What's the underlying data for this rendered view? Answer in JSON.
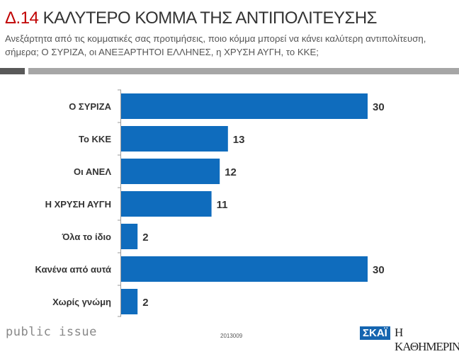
{
  "header": {
    "code": "Δ.14",
    "title": "ΚΑΛΥΤΕΡΟ ΚΟΜΜΑ ΤΗΣ ΑΝΤΙΠΟΛΙΤΕΥΣΗΣ",
    "subtitle": "Ανεξάρτητα από τις κομματικές σας προτιμήσεις, ποιο κόμμα μπορεί να κάνει καλύτερη αντιπολίτευση, σήμερα; Ο ΣΥΡΙΖΑ, οι ΑΝΕΞΑΡΤΗΤΟΙ ΕΛΛΗΝΕΣ, η ΧΡΥΣΗ ΑΥΓΗ, το ΚΚΕ;"
  },
  "footer": {
    "brand": "public issue",
    "code": "2013009",
    "skai": "ΣΚΑΪ",
    "kathimerini": "Η ΚΑΘΗΜΕΡΙΝΗ"
  },
  "chart_data": {
    "type": "bar",
    "orientation": "horizontal",
    "categories": [
      "Ο ΣΥΡΙΖΑ",
      "Το ΚΚΕ",
      "Οι ΑΝΕΛ",
      "Η ΧΡΥΣΗ ΑΥΓΗ",
      "Όλα το ίδιο",
      "Κανένα από αυτά",
      "Χωρίς γνώμη"
    ],
    "values": [
      30,
      13,
      12,
      11,
      2,
      30,
      2
    ],
    "xlim": [
      0,
      30
    ],
    "bar_color": "#0f6cbd"
  }
}
